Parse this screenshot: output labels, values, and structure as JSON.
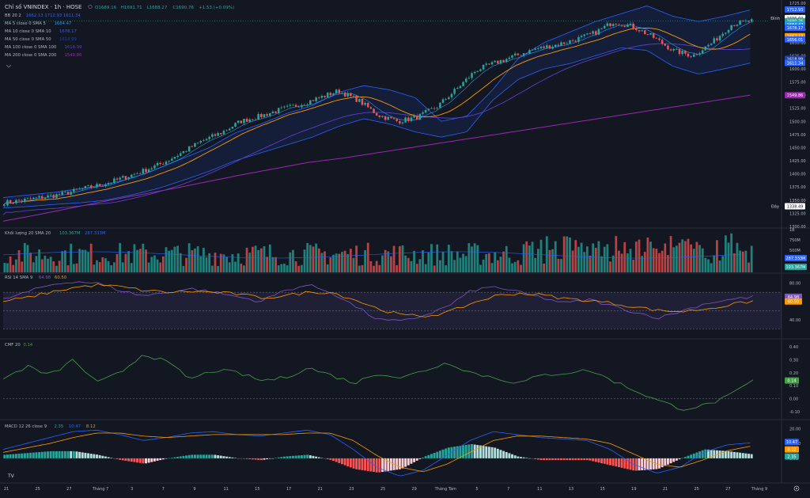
{
  "header": {
    "symbol_title": "Chỉ số VNINDEX · 1h · HOSE",
    "ohlc": {
      "o": "O1689.16",
      "h": "H1691.71",
      "l": "L1688.27",
      "c": "C1690.76",
      "chg": "+1.53 (+0.09%)"
    }
  },
  "legend": [
    {
      "label": "BB 20 2",
      "values": "1662.13  1712.93  1611.34",
      "color": "#2962ff"
    },
    {
      "label": "MA 5 close 0 SMA 5",
      "values": "1684.47",
      "color": "#2196f3"
    },
    {
      "label": "MA 10 close 0 SMA 10",
      "values": "1678.17",
      "color": "#2962ff"
    },
    {
      "label": "MA 50 close 0 SMA 50",
      "values": "1618.99",
      "color": "#1e3fae"
    },
    {
      "label": "MA 100 close 0 SMA 100",
      "values": "1618.99",
      "color": "#5b3fc9"
    },
    {
      "label": "MA 200 close 0 SMA 200",
      "values": "1549.86",
      "color": "#9c27b0"
    }
  ],
  "price_axis": {
    "ticks": [
      "1725.00",
      "1700.00",
      "1675.00",
      "1650.00",
      "1625.00",
      "1600.00",
      "1575.00",
      "1550.00",
      "1525.00",
      "1500.00",
      "1475.00",
      "1450.00",
      "1425.00",
      "1400.00",
      "1375.00",
      "1350.00",
      "1325.00",
      "1300.00"
    ],
    "labels": [
      {
        "text": "1712.93",
        "value": 1712.93,
        "color": "#2962ff"
      },
      {
        "text": "Đỉnh",
        "value": 1696.6,
        "color": "#131722",
        "text_color": "#d1d4dc"
      },
      {
        "text": "1696.60",
        "value": 1696.6,
        "color": "#ffffff",
        "text_color": "#131722"
      },
      {
        "text": "1690.76",
        "value": 1690.76,
        "color": "#26a69a",
        "text_color": "#ffffff"
      },
      {
        "text": "1684.47",
        "value": 1684.47,
        "color": "#2196f3"
      },
      {
        "text": "1678.17",
        "value": 1678.17,
        "color": "#2962ff"
      },
      {
        "text": "1662.13",
        "value": 1662.13,
        "color": "#ff9800"
      },
      {
        "text": "1656.01",
        "value": 1656.01,
        "color": "#2962ff"
      },
      {
        "text": "1618.99",
        "value": 1618.99,
        "color": "#1e3fae"
      },
      {
        "text": "1611.34",
        "value": 1611.34,
        "color": "#2962ff"
      },
      {
        "text": "1549.86",
        "value": 1549.86,
        "color": "#9c27b0"
      },
      {
        "text": "Đáy",
        "value": 1338.49,
        "color": "#131722",
        "text_color": "#d1d4dc"
      },
      {
        "text": "1338.49",
        "value": 1338.49,
        "color": "#ffffff",
        "text_color": "#131722"
      }
    ]
  },
  "volume": {
    "label": "Khối lượng 20 SMA 20",
    "values_text": [
      "103.367M",
      "287.333M"
    ],
    "ticks": [
      "1B",
      "750M",
      "500M"
    ],
    "labels": [
      {
        "text": "287.333M",
        "color": "#2962ff"
      },
      {
        "text": "103.367M",
        "color": "#26a69a"
      }
    ]
  },
  "rsi": {
    "label": "RSI 14 SMA 9",
    "values_text": [
      "64.98",
      "60.50"
    ],
    "ticks": [
      "80.00",
      "40.00"
    ],
    "labels": [
      {
        "text": "64.98",
        "color": "#7e57c2"
      },
      {
        "text": "60.50",
        "color": "#ff9800"
      }
    ]
  },
  "cmf": {
    "label": "CMF 20",
    "values_text": [
      "0.14"
    ],
    "ticks": [
      "0.40",
      "0.30",
      "0.20",
      "0.10",
      "0.00",
      "-0.10"
    ],
    "labels": [
      {
        "text": "0.14",
        "color": "#43a047"
      }
    ]
  },
  "macd": {
    "label": "MACD 12 26 close 9",
    "values_text": [
      "2.35",
      "10.47",
      "8.12"
    ],
    "ticks": [
      "20.00",
      "10.00",
      "0.00"
    ],
    "labels": [
      {
        "text": "10.47",
        "color": "#2962ff"
      },
      {
        "text": "8.12",
        "color": "#ff9800"
      },
      {
        "text": "2.35",
        "color": "#26a69a"
      }
    ]
  },
  "time_axis": [
    "21",
    "25",
    "27",
    "Tháng 7",
    "3",
    "7",
    "9",
    "11",
    "15",
    "17",
    "21",
    "23",
    "25",
    "29",
    "Tháng Tám",
    "5",
    "7",
    "11",
    "13",
    "15",
    "19",
    "21",
    "25",
    "27",
    "Tháng 9"
  ],
  "chart_data": [
    {
      "type": "candlestick",
      "title": "Chỉ số VNINDEX · 1h · HOSE",
      "ylim": [
        1300,
        1725
      ],
      "grid": false,
      "legend": "top-left",
      "series_keypoints": {
        "close": [
          1345,
          1350,
          1356,
          1362,
          1372,
          1380,
          1392,
          1405,
          1420,
          1440,
          1462,
          1478,
          1500,
          1510,
          1522,
          1532,
          1545,
          1558,
          1540,
          1512,
          1500,
          1508,
          1528,
          1562,
          1598,
          1612,
          1625,
          1638,
          1645,
          1655,
          1668,
          1690,
          1680,
          1660,
          1635,
          1625,
          1650,
          1685,
          1691
        ],
        "sma200": [
          1310,
          1322,
          1335,
          1348,
          1360,
          1372,
          1385,
          1398,
          1410,
          1422,
          1430,
          1440,
          1450,
          1460,
          1470,
          1480,
          1490,
          1500,
          1510,
          1520,
          1530,
          1540,
          1550
        ],
        "bb_upper": [
          1355,
          1360,
          1365,
          1372,
          1380,
          1392,
          1410,
          1430,
          1450,
          1478,
          1495,
          1515,
          1530,
          1555,
          1568,
          1560,
          1545,
          1500,
          1510,
          1560,
          1620,
          1650,
          1670,
          1690,
          1705,
          1720,
          1700,
          1690,
          1700,
          1712
        ],
        "bb_lower": [
          1335,
          1338,
          1342,
          1345,
          1350,
          1360,
          1372,
          1388,
          1405,
          1425,
          1440,
          1455,
          1470,
          1490,
          1505,
          1495,
          1480,
          1470,
          1480,
          1540,
          1580,
          1600,
          1610,
          1625,
          1640,
          1635,
          1605,
          1590,
          1600,
          1611
        ]
      },
      "annotations": [
        "Đỉnh 1696.60",
        "Đáy 1338.49"
      ]
    },
    {
      "type": "bar",
      "title": "Khối lượng 20 SMA 20",
      "ylim": [
        0,
        1000000000
      ],
      "legend": "top-left"
    },
    {
      "type": "line",
      "title": "RSI 14 SMA 9",
      "ylim": [
        20,
        90
      ],
      "series": [
        {
          "name": "RSI",
          "values": [
            62,
            70,
            78,
            82,
            80,
            72,
            66,
            70,
            74,
            70,
            65,
            60,
            72,
            78,
            70,
            55,
            40,
            38,
            45,
            55,
            72,
            76,
            70,
            64,
            58,
            62,
            55,
            48,
            42,
            50,
            58,
            62,
            64.98
          ]
        },
        {
          "name": "SMA",
          "values": [
            60,
            64,
            70,
            75,
            78,
            76,
            72,
            70,
            71,
            70,
            68,
            64,
            66,
            70,
            70,
            62,
            52,
            45,
            44,
            48,
            58,
            66,
            69,
            67,
            63,
            61,
            58,
            54,
            50,
            49,
            52,
            56,
            60.5
          ]
        }
      ]
    },
    {
      "type": "line",
      "title": "CMF 20",
      "ylim": [
        -0.15,
        0.45
      ],
      "series": [
        {
          "name": "CMF",
          "values": [
            0.15,
            0.25,
            0.18,
            0.3,
            0.12,
            0.2,
            0.35,
            0.28,
            0.15,
            0.22,
            0.2,
            0.14,
            0.16,
            0.24,
            0.18,
            0.12,
            0.2,
            0.16,
            0.22,
            0.28,
            0.2,
            0.16,
            0.12,
            0.18,
            0.2,
            0.22,
            0.14,
            0.06,
            -0.02,
            -0.08,
            -0.05,
            0.02,
            0.14
          ]
        }
      ]
    },
    {
      "type": "line",
      "title": "MACD 12 26 close 9",
      "ylim": [
        -15,
        25
      ],
      "series": [
        {
          "name": "MACD",
          "values": [
            6,
            10,
            14,
            18,
            19,
            16,
            12,
            14,
            17,
            18,
            16,
            15,
            17,
            19,
            16,
            6,
            -6,
            -12,
            -8,
            2,
            12,
            18,
            16,
            14,
            13,
            12,
            6,
            -4,
            -10,
            -6,
            4,
            9,
            10.47
          ]
        },
        {
          "name": "Signal",
          "values": [
            4,
            7,
            10,
            14,
            17,
            17,
            15,
            14,
            15,
            16,
            16,
            16,
            16,
            17,
            17,
            12,
            2,
            -6,
            -9,
            -4,
            4,
            12,
            15,
            15,
            14,
            13,
            10,
            3,
            -4,
            -6,
            -1,
            5,
            8.12
          ]
        }
      ]
    }
  ]
}
